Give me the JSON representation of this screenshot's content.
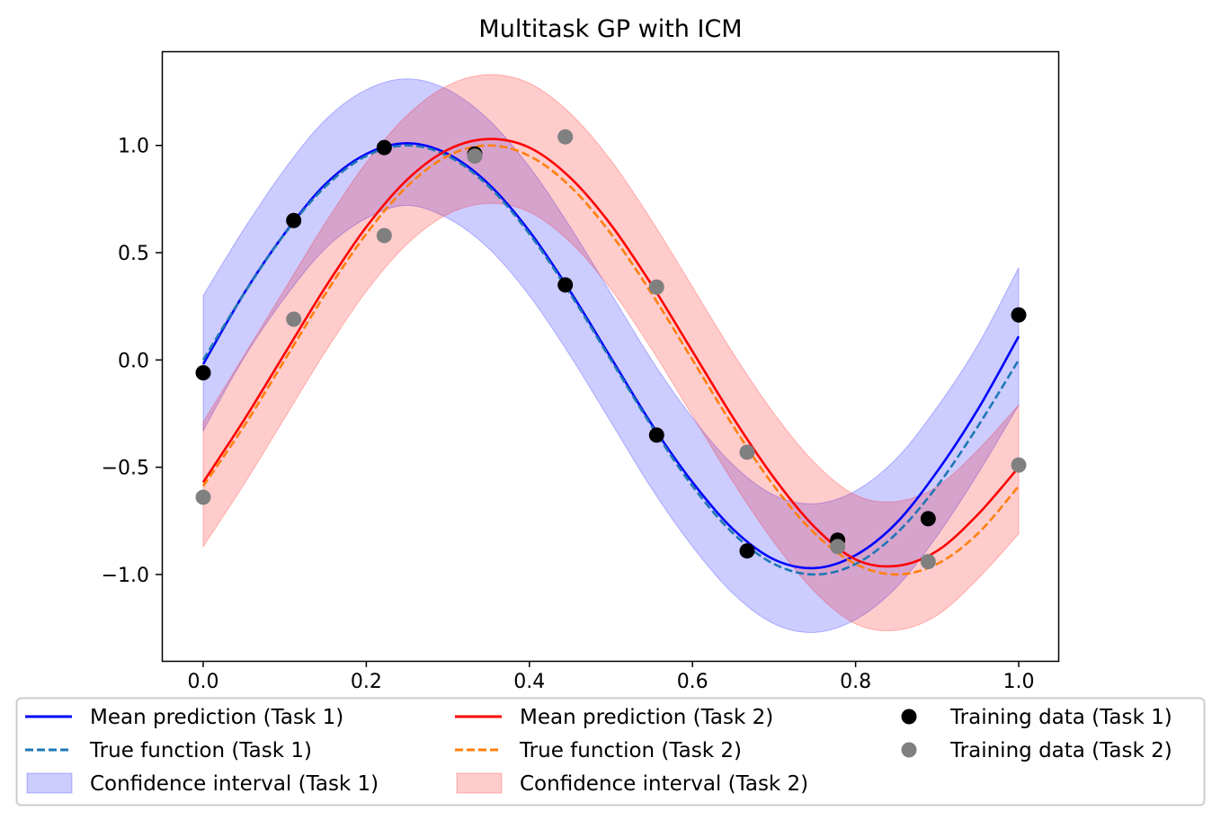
{
  "chart_data": {
    "type": "line",
    "title": "Multitask GP with ICM",
    "xlabel": "",
    "ylabel": "",
    "xlim": [
      -0.05,
      1.05
    ],
    "ylim": [
      -1.4,
      1.37
    ],
    "xticks": [
      "0.0",
      "0.2",
      "0.4",
      "0.6",
      "0.8",
      "1.0"
    ],
    "xtick_values": [
      0,
      0.2,
      0.4,
      0.6,
      0.8,
      1.0
    ],
    "yticks": [
      "1.0",
      "0.5",
      "0.0",
      "−0.5",
      "−1.0"
    ],
    "ytick_values": [
      1.0,
      0.5,
      0.0,
      -0.5,
      -1.0
    ],
    "grid": false,
    "legend_placement": "bottom",
    "x": [
      0,
      0.05,
      0.1,
      0.15,
      0.2,
      0.25,
      0.3,
      0.35,
      0.4,
      0.45,
      0.5,
      0.55,
      0.6,
      0.65,
      0.7,
      0.75,
      0.8,
      0.85,
      0.9,
      0.95,
      1.0
    ],
    "series": [
      {
        "name": "Confidence interval (Task 1)",
        "kind": "band",
        "color": "#0000ff",
        "alpha": 0.2,
        "lower": [
          -0.33,
          0.01,
          0.29,
          0.52,
          0.66,
          0.72,
          0.66,
          0.52,
          0.3,
          0.02,
          -0.29,
          -0.6,
          -0.87,
          -1.09,
          -1.23,
          -1.27,
          -1.21,
          -1.06,
          -0.82,
          -0.53,
          -0.21
        ],
        "upper": [
          0.3,
          0.61,
          0.89,
          1.12,
          1.26,
          1.31,
          1.26,
          1.12,
          0.9,
          0.62,
          0.31,
          0.0,
          -0.27,
          -0.49,
          -0.63,
          -0.67,
          -0.61,
          -0.46,
          -0.22,
          0.07,
          0.43
        ]
      },
      {
        "name": "Confidence interval (Task 2)",
        "kind": "band",
        "color": "#ff0000",
        "alpha": 0.2,
        "lower": [
          -0.87,
          -0.58,
          -0.27,
          0.04,
          0.32,
          0.54,
          0.68,
          0.73,
          0.69,
          0.55,
          0.33,
          0.05,
          -0.26,
          -0.57,
          -0.85,
          -1.08,
          -1.23,
          -1.26,
          -1.19,
          -1.02,
          -0.81
        ],
        "upper": [
          -0.29,
          0.02,
          0.33,
          0.64,
          0.92,
          1.14,
          1.28,
          1.33,
          1.29,
          1.15,
          0.93,
          0.65,
          0.34,
          0.03,
          -0.25,
          -0.48,
          -0.63,
          -0.66,
          -0.59,
          -0.42,
          -0.21
        ]
      },
      {
        "name": "Mean prediction (Task 1)",
        "kind": "line",
        "color": "#0000ff",
        "dash": false,
        "y": [
          -0.02,
          0.31,
          0.59,
          0.82,
          0.96,
          1.01,
          0.96,
          0.82,
          0.6,
          0.32,
          0.01,
          -0.3,
          -0.57,
          -0.79,
          -0.93,
          -0.97,
          -0.91,
          -0.76,
          -0.52,
          -0.23,
          0.11
        ]
      },
      {
        "name": "True function (Task 1)",
        "kind": "line",
        "color": "#1f77b4",
        "dash": true,
        "y": [
          0,
          0.309,
          0.588,
          0.809,
          0.951,
          1,
          0.951,
          0.809,
          0.588,
          0.309,
          0,
          -0.309,
          -0.588,
          -0.809,
          -0.951,
          -1,
          -0.951,
          -0.809,
          -0.588,
          -0.309,
          0
        ]
      },
      {
        "name": "Mean prediction (Task 2)",
        "kind": "line",
        "color": "#ff0000",
        "dash": false,
        "y": [
          -0.57,
          -0.28,
          0.03,
          0.34,
          0.62,
          0.84,
          0.98,
          1.03,
          0.99,
          0.85,
          0.63,
          0.35,
          0.04,
          -0.27,
          -0.55,
          -0.78,
          -0.93,
          -0.96,
          -0.89,
          -0.72,
          -0.5
        ]
      },
      {
        "name": "True function (Task 2)",
        "kind": "line",
        "color": "#ff7f0e",
        "dash": true,
        "y": [
          -0.588,
          -0.309,
          0,
          0.309,
          0.588,
          0.809,
          0.951,
          1,
          0.951,
          0.809,
          0.588,
          0.309,
          0,
          -0.309,
          -0.588,
          -0.809,
          -0.951,
          -1,
          -0.951,
          -0.809,
          -0.588
        ]
      },
      {
        "name": "Training data (Task 1)",
        "kind": "scatter",
        "color": "#000000",
        "points": [
          [
            0,
            -0.06
          ],
          [
            0.111,
            0.65
          ],
          [
            0.222,
            0.99
          ],
          [
            0.333,
            0.96
          ],
          [
            0.444,
            0.35
          ],
          [
            0.556,
            -0.35
          ],
          [
            0.667,
            -0.89
          ],
          [
            0.778,
            -0.84
          ],
          [
            0.889,
            -0.74
          ],
          [
            1.0,
            0.21
          ]
        ]
      },
      {
        "name": "Training data (Task 2)",
        "kind": "scatter",
        "color": "#808080",
        "points": [
          [
            0,
            -0.64
          ],
          [
            0.111,
            0.19
          ],
          [
            0.222,
            0.58
          ],
          [
            0.333,
            0.95
          ],
          [
            0.444,
            1.04
          ],
          [
            0.556,
            0.34
          ],
          [
            0.667,
            -0.43
          ],
          [
            0.778,
            -0.87
          ],
          [
            0.889,
            -0.94
          ],
          [
            1.0,
            -0.49
          ]
        ]
      }
    ],
    "legend": [
      {
        "label": "Mean prediction (Task 1)",
        "series": 2
      },
      {
        "label": "True function (Task 1)",
        "series": 3
      },
      {
        "label": "Confidence interval (Task 1)",
        "series": 0
      },
      {
        "label": "Mean prediction (Task 2)",
        "series": 4
      },
      {
        "label": "True function (Task 2)",
        "series": 5
      },
      {
        "label": "Confidence interval (Task 2)",
        "series": 1
      },
      {
        "label": "Training data (Task 1)",
        "series": 6
      },
      {
        "label": "Training data (Task 2)",
        "series": 7
      }
    ]
  }
}
